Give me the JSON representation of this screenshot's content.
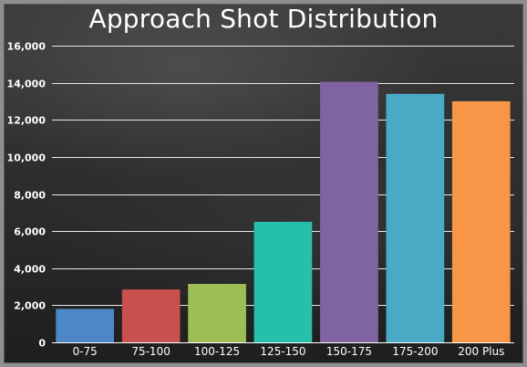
{
  "chart_data": {
    "type": "bar",
    "title": "Approach Shot Distribution",
    "xlabel": "",
    "ylabel": "",
    "categories": [
      "0-75",
      "75-100",
      "100-125",
      "125-150",
      "150-175",
      "175-200",
      "200 Plus"
    ],
    "values": [
      1800,
      2850,
      3150,
      6500,
      14050,
      13400,
      13000
    ],
    "colors": [
      "#4d87c7",
      "#c8504e",
      "#9dbe55",
      "#26c0aa",
      "#8064a2",
      "#4aaac5",
      "#f79646"
    ],
    "ylim": [
      0,
      16000
    ],
    "yticks": [
      0,
      2000,
      4000,
      6000,
      8000,
      10000,
      12000,
      14000,
      16000
    ],
    "ytick_labels": [
      "0",
      "2,000",
      "4,000",
      "6,000",
      "8,000",
      "10,000",
      "12,000",
      "14,000",
      "16,000"
    ],
    "grid": true,
    "legend": "none"
  }
}
